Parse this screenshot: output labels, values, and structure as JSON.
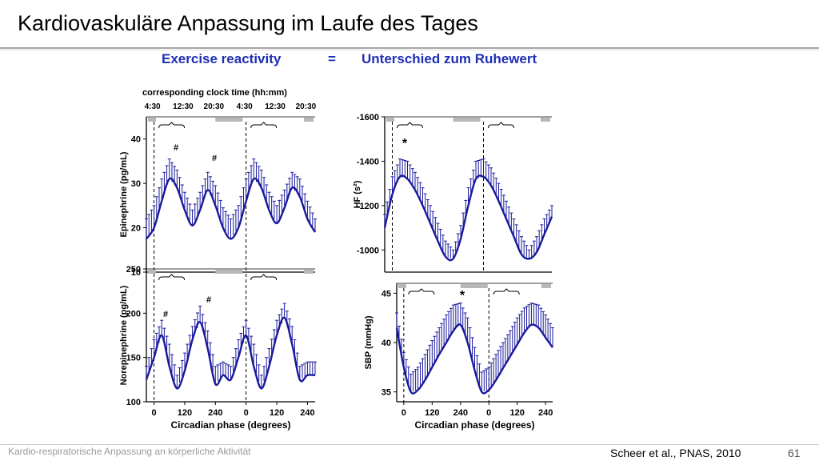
{
  "slide": {
    "title": "Kardiovaskuläre Anpassung im Laufe des Tages",
    "headline_left": "Exercise reactivity",
    "headline_eq": "=",
    "headline_right": "Unterschied zum Ruhewert",
    "footer_left": "Kardio-respiratorische Anpassung an körperliche Aktivität",
    "citation": "Scheer et al., PNAS, 2010",
    "page_number": "61"
  },
  "colors": {
    "curve": "#1a1a9e",
    "headline": "#1f2fb5",
    "bar_gray": "#b8b8b8",
    "axis": "#000000"
  },
  "chart_data": [
    {
      "type": "line",
      "panel": "top-left",
      "top_axis_label": "corresponding clock time (hh:mm)",
      "top_ticks": [
        "4:30",
        "12:30",
        "20:30",
        "4:30",
        "12:30",
        "20:30"
      ],
      "ylabel": "Epinephrine (pg/mL)",
      "xlabel": "",
      "ylim": [
        10,
        45
      ],
      "yticks": [
        "10",
        "20",
        "30",
        "40"
      ],
      "significance_markers": [
        "#",
        "#"
      ],
      "x": [
        -30,
        0,
        30,
        60,
        90,
        120,
        150,
        180,
        210,
        240,
        270,
        300,
        330,
        360,
        390,
        420,
        450,
        480,
        510,
        540,
        570,
        600,
        630
      ],
      "series": [
        {
          "values": [
            17.5,
            20,
            26,
            31,
            29,
            24,
            20.5,
            24,
            28.5,
            25,
            20,
            17.5,
            20,
            26,
            31,
            29,
            24,
            21,
            24.5,
            29,
            27,
            22,
            19
          ]
        }
      ],
      "error_upper": [
        22,
        25,
        31,
        35.5,
        33,
        28,
        24,
        28,
        32.5,
        29.5,
        24.5,
        22,
        25,
        31,
        35.5,
        33,
        28,
        25,
        28.5,
        32.5,
        31,
        26,
        22
      ]
    },
    {
      "type": "line",
      "panel": "bottom-left",
      "ylabel": "Norepinephrine (pg/mL)",
      "xlabel": "Circadian phase (degrees)",
      "ylim": [
        100,
        250
      ],
      "yticks": [
        "100",
        "150",
        "200",
        "250"
      ],
      "xticks": [
        "0",
        "120",
        "240",
        "0",
        "120",
        "240"
      ],
      "significance_markers": [
        "#",
        "#"
      ],
      "x": [
        -30,
        0,
        30,
        60,
        90,
        120,
        150,
        180,
        210,
        240,
        270,
        300,
        330,
        360,
        390,
        420,
        450,
        480,
        510,
        540,
        570,
        600,
        630
      ],
      "series": [
        {
          "values": [
            125,
            150,
            175,
            140,
            115,
            135,
            170,
            190,
            160,
            120,
            130,
            125,
            150,
            175,
            140,
            115,
            140,
            175,
            195,
            165,
            125,
            130,
            130
          ]
        }
      ],
      "error_upper": [
        140,
        170,
        192,
        165,
        130,
        155,
        185,
        208,
        180,
        140,
        145,
        140,
        170,
        192,
        165,
        130,
        160,
        192,
        211,
        185,
        140,
        145,
        145
      ]
    },
    {
      "type": "line",
      "panel": "top-right",
      "ylabel": "HF (s²)",
      "xlabel": "",
      "ylim": [
        -900,
        -1600
      ],
      "yticks": [
        "-1000",
        "-1200",
        "-1400",
        "-1600"
      ],
      "significance_markers": [
        "*"
      ],
      "x": [
        -30,
        0,
        30,
        60,
        90,
        120,
        150,
        180,
        210,
        240,
        270,
        300,
        330,
        360,
        390,
        420,
        450,
        480,
        510,
        540,
        570,
        600,
        630
      ],
      "series": [
        {
          "values": [
            -1100,
            -1250,
            -1330,
            -1320,
            -1270,
            -1200,
            -1120,
            -1040,
            -970,
            -960,
            -1050,
            -1200,
            -1320,
            -1330,
            -1290,
            -1220,
            -1140,
            -1060,
            -980,
            -960,
            -990,
            -1070,
            -1150
          ]
        }
      ],
      "error_upper": [
        -1160,
        -1330,
        -1410,
        -1400,
        -1350,
        -1280,
        -1200,
        -1120,
        -1040,
        -1000,
        -1110,
        -1280,
        -1400,
        -1410,
        -1370,
        -1300,
        -1220,
        -1140,
        -1060,
        -1000,
        -1060,
        -1140,
        -1200
      ]
    },
    {
      "type": "line",
      "panel": "bottom-right",
      "ylabel": "SBP (mmHg)",
      "xlabel": "Circadian phase (degrees)",
      "ylim": [
        34,
        46
      ],
      "yticks": [
        "35",
        "40",
        "45"
      ],
      "xticks": [
        "0",
        "120",
        "240",
        "0",
        "120",
        "240"
      ],
      "significance_markers": [
        "*"
      ],
      "x": [
        -30,
        0,
        30,
        60,
        90,
        120,
        150,
        180,
        210,
        240,
        270,
        300,
        330,
        360,
        390,
        420,
        450,
        480,
        510,
        540,
        570,
        600,
        630
      ],
      "series": [
        {
          "values": [
            41.5,
            37.5,
            35,
            35.2,
            36.2,
            37.5,
            38.8,
            40,
            41.2,
            41.8,
            40,
            37.2,
            35,
            35.2,
            36.2,
            37.4,
            38.6,
            39.8,
            41,
            41.8,
            41.5,
            40.5,
            39.5
          ]
        }
      ],
      "error_upper": [
        43,
        39,
        36.8,
        37.5,
        38.8,
        40.2,
        41.5,
        42.8,
        43.8,
        44,
        42.5,
        39.5,
        37,
        37.5,
        38.8,
        40,
        41.2,
        42.5,
        43.5,
        44,
        43.8,
        42.8,
        41.5
      ]
    }
  ]
}
